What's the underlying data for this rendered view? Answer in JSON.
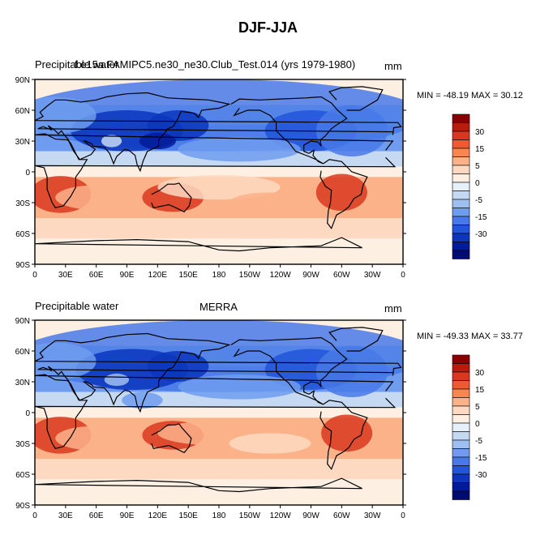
{
  "figure": {
    "title": "DJF-JJA"
  },
  "colorbar_levels": [
    "30",
    "15",
    "5",
    "0",
    "-5",
    "-15",
    "-30"
  ],
  "colorbar_colors": [
    "#8b0000",
    "#b71c0c",
    "#d8381f",
    "#ee5a33",
    "#f7874f",
    "#fbb289",
    "#fdd9c1",
    "#fdf0e3",
    "#e6f0fa",
    "#c5d9f3",
    "#9fbff0",
    "#6f9cee",
    "#4879e8",
    "#2255d9",
    "#0b36bd",
    "#001b99",
    "#000a73"
  ],
  "panels": [
    {
      "left_label": "Precipitable water",
      "center_label": "f.e15a.FAMIPC5.ne30_ne30.Club_Test.014 (yrs 1979-1980)",
      "units": "mm",
      "minmax": "MIN = -48.19 MAX =  30.12",
      "lat_ticks": [
        "90N",
        "60N",
        "30N",
        "0",
        "30S",
        "60S",
        "90S"
      ],
      "lon_ticks": [
        "0",
        "30E",
        "60E",
        "90E",
        "120E",
        "150E",
        "180",
        "150W",
        "120W",
        "90W",
        "60W",
        "30W",
        "0"
      ]
    },
    {
      "left_label": "Precipitable water",
      "center_label": "MERRA",
      "units": "mm",
      "minmax": "MIN = -49.33 MAX =  33.77",
      "lat_ticks": [
        "90N",
        "60N",
        "30N",
        "0",
        "30S",
        "60S",
        "90S"
      ],
      "lon_ticks": [
        "0",
        "30E",
        "60E",
        "90E",
        "120E",
        "150E",
        "180",
        "150W",
        "120W",
        "90W",
        "60W",
        "30W",
        "0"
      ]
    }
  ]
}
